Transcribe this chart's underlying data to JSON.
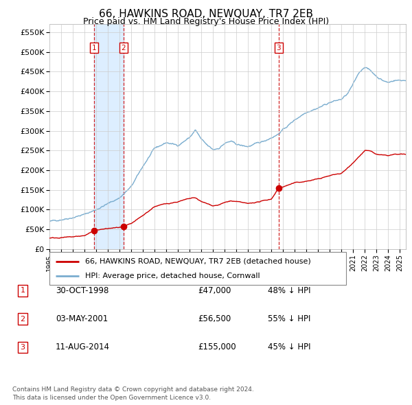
{
  "title": "66, HAWKINS ROAD, NEWQUAY, TR7 2EB",
  "subtitle": "Price paid vs. HM Land Registry's House Price Index (HPI)",
  "title_fontsize": 11,
  "subtitle_fontsize": 9,
  "legend_line1": "66, HAWKINS ROAD, NEWQUAY, TR7 2EB (detached house)",
  "legend_line2": "HPI: Average price, detached house, Cornwall",
  "transactions": [
    {
      "num": 1,
      "date_str": "30-OCT-1998",
      "price": 47000,
      "hpi_pct": "48% ↓ HPI",
      "x": 1998.83
    },
    {
      "num": 2,
      "date_str": "03-MAY-2001",
      "price": 56500,
      "hpi_pct": "55% ↓ HPI",
      "x": 2001.34
    },
    {
      "num": 3,
      "date_str": "11-AUG-2014",
      "price": 155000,
      "hpi_pct": "45% ↓ HPI",
      "x": 2014.61
    }
  ],
  "footnote1": "Contains HM Land Registry data © Crown copyright and database right 2024.",
  "footnote2": "This data is licensed under the Open Government Licence v3.0.",
  "red_color": "#cc0000",
  "blue_color": "#7aadcf",
  "bg_color": "#ffffff",
  "grid_color": "#cccccc",
  "shade_color": "#ddeeff",
  "xmin": 1995,
  "xmax": 2025.5,
  "ymin": 0,
  "ymax": 570000,
  "hpi_points": [
    [
      1995.0,
      70000
    ],
    [
      1996.0,
      75000
    ],
    [
      1997.0,
      80000
    ],
    [
      1998.0,
      88000
    ],
    [
      1999.0,
      100000
    ],
    [
      2000.0,
      115000
    ],
    [
      2001.0,
      130000
    ],
    [
      2002.0,
      158000
    ],
    [
      2003.0,
      210000
    ],
    [
      2004.0,
      255000
    ],
    [
      2005.0,
      270000
    ],
    [
      2006.0,
      263000
    ],
    [
      2007.0,
      283000
    ],
    [
      2007.5,
      302000
    ],
    [
      2008.0,
      278000
    ],
    [
      2008.5,
      263000
    ],
    [
      2009.0,
      252000
    ],
    [
      2009.5,
      256000
    ],
    [
      2010.0,
      268000
    ],
    [
      2010.5,
      273000
    ],
    [
      2011.0,
      266000
    ],
    [
      2011.5,
      262000
    ],
    [
      2012.0,
      260000
    ],
    [
      2012.5,
      265000
    ],
    [
      2013.0,
      270000
    ],
    [
      2013.5,
      276000
    ],
    [
      2014.0,
      283000
    ],
    [
      2014.5,
      290000
    ],
    [
      2015.0,
      303000
    ],
    [
      2015.5,
      315000
    ],
    [
      2016.0,
      328000
    ],
    [
      2016.5,
      338000
    ],
    [
      2017.0,
      348000
    ],
    [
      2017.5,
      353000
    ],
    [
      2018.0,
      358000
    ],
    [
      2018.5,
      365000
    ],
    [
      2019.0,
      372000
    ],
    [
      2019.5,
      376000
    ],
    [
      2020.0,
      380000
    ],
    [
      2020.5,
      393000
    ],
    [
      2021.0,
      418000
    ],
    [
      2021.5,
      448000
    ],
    [
      2022.0,
      463000
    ],
    [
      2022.5,
      452000
    ],
    [
      2023.0,
      438000
    ],
    [
      2023.5,
      428000
    ],
    [
      2024.0,
      422000
    ],
    [
      2024.5,
      428000
    ],
    [
      2025.0,
      428000
    ]
  ],
  "red_points": [
    [
      1995.0,
      28000
    ],
    [
      1996.0,
      29000
    ],
    [
      1997.0,
      31000
    ],
    [
      1998.0,
      34000
    ],
    [
      1998.83,
      47000
    ],
    [
      1999.0,
      48500
    ],
    [
      2000.0,
      52000
    ],
    [
      2001.0,
      55000
    ],
    [
      2001.34,
      56500
    ],
    [
      2002.0,
      64000
    ],
    [
      2003.0,
      85000
    ],
    [
      2004.0,
      108000
    ],
    [
      2005.0,
      115000
    ],
    [
      2006.0,
      120000
    ],
    [
      2007.0,
      128000
    ],
    [
      2007.5,
      130000
    ],
    [
      2008.0,
      120000
    ],
    [
      2008.5,
      115000
    ],
    [
      2009.0,
      110000
    ],
    [
      2009.5,
      112000
    ],
    [
      2010.0,
      118000
    ],
    [
      2010.5,
      122000
    ],
    [
      2011.0,
      120000
    ],
    [
      2011.5,
      118000
    ],
    [
      2012.0,
      115000
    ],
    [
      2012.5,
      118000
    ],
    [
      2013.0,
      120000
    ],
    [
      2013.5,
      124000
    ],
    [
      2014.0,
      127000
    ],
    [
      2014.61,
      155000
    ],
    [
      2015.0,
      158000
    ],
    [
      2015.5,
      163000
    ],
    [
      2016.0,
      168000
    ],
    [
      2016.5,
      170000
    ],
    [
      2017.0,
      172000
    ],
    [
      2017.5,
      175000
    ],
    [
      2018.0,
      178000
    ],
    [
      2018.5,
      182000
    ],
    [
      2019.0,
      186000
    ],
    [
      2019.5,
      190000
    ],
    [
      2020.0,
      192000
    ],
    [
      2020.5,
      205000
    ],
    [
      2021.0,
      220000
    ],
    [
      2021.5,
      235000
    ],
    [
      2022.0,
      250000
    ],
    [
      2022.5,
      248000
    ],
    [
      2023.0,
      240000
    ],
    [
      2023.5,
      238000
    ],
    [
      2024.0,
      237000
    ],
    [
      2024.5,
      240000
    ],
    [
      2025.0,
      240000
    ]
  ]
}
